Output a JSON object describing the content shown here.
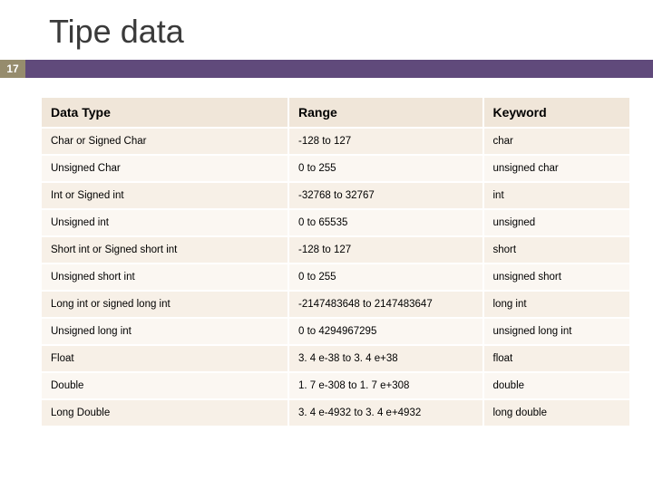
{
  "title": "Tipe data",
  "slide_number": "17",
  "colors": {
    "title_text": "#3a3a3a",
    "badge_bg": "#968c6d",
    "badge_text": "#ffffff",
    "bar_bg": "#604a7b",
    "header_bg": "#f0e6d9",
    "row_odd_bg": "#f7f0e7",
    "row_even_bg": "#fbf7f2",
    "border": "#ffffff",
    "cell_text": "#000000"
  },
  "typography": {
    "title_fontsize": 36,
    "header_fontsize": 14,
    "cell_fontsize": 11.5,
    "font_family": "Arial"
  },
  "table": {
    "type": "table",
    "column_widths_pct": [
      42,
      33,
      25
    ],
    "columns": [
      "Data Type",
      "Range",
      "Keyword"
    ],
    "rows": [
      [
        "Char or Signed Char",
        "-128 to 127",
        "char"
      ],
      [
        "Unsigned Char",
        "0 to 255",
        "unsigned char"
      ],
      [
        "Int or Signed int",
        "-32768 to 32767",
        "int"
      ],
      [
        "Unsigned int",
        " 0 to 65535",
        "unsigned"
      ],
      [
        "Short int or Signed short int",
        "-128 to 127",
        "short"
      ],
      [
        "Unsigned short int",
        "0 to 255",
        "unsigned short"
      ],
      [
        "Long int or signed long int",
        "-2147483648 to 2147483647",
        "long int"
      ],
      [
        "Unsigned long int",
        "0 to 4294967295",
        "unsigned long int"
      ],
      [
        "Float",
        "3. 4 e-38 to 3. 4 e+38",
        "float"
      ],
      [
        "Double",
        "1. 7 e-308 to 1. 7 e+308",
        "double"
      ],
      [
        "Long Double",
        "3. 4 e-4932 to 3. 4 e+4932",
        "long double"
      ]
    ]
  }
}
